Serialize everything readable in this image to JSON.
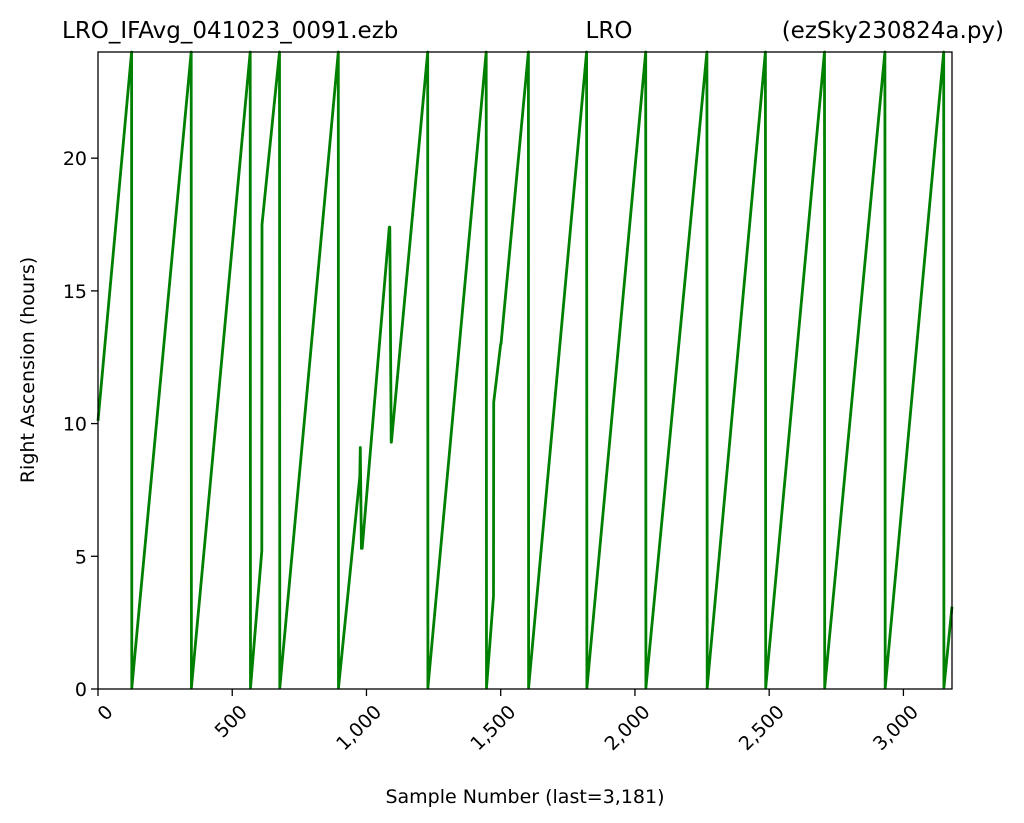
{
  "chart_data": {
    "type": "line",
    "title_left": "LRO_IFAvg_041023_0091.ezb",
    "title_center": "LRO",
    "title_right": "(ezSky230824a.py)",
    "xlabel": "Sample Number (last=3,181)",
    "ylabel": "Right Ascension (hours)",
    "xlim": [
      0,
      3181
    ],
    "ylim": [
      0,
      24
    ],
    "xticks": [
      {
        "value": 0,
        "label": "0"
      },
      {
        "value": 500,
        "label": "500"
      },
      {
        "value": 1000,
        "label": "1,000"
      },
      {
        "value": 1500,
        "label": "1,500"
      },
      {
        "value": 2000,
        "label": "2,000"
      },
      {
        "value": 2500,
        "label": "2,500"
      },
      {
        "value": 3000,
        "label": "3,000"
      }
    ],
    "yticks": [
      {
        "value": 0,
        "label": "0"
      },
      {
        "value": 5,
        "label": "5"
      },
      {
        "value": 10,
        "label": "10"
      },
      {
        "value": 15,
        "label": "15"
      },
      {
        "value": 20,
        "label": "20"
      }
    ],
    "grid": false,
    "legend": "none",
    "series": [
      {
        "color": "#008000",
        "x": [
          0,
          125,
          126,
          347,
          348,
          567,
          568,
          610,
          611,
          676,
          677,
          895,
          896,
          975,
          977,
          981,
          984,
          1085,
          1087,
          1092,
          1093,
          1228,
          1229,
          1446,
          1447,
          1473,
          1474,
          1500,
          1501,
          1603,
          1604,
          1820,
          1821,
          2040,
          2041,
          2268,
          2269,
          2486,
          2487,
          2706,
          2707,
          2931,
          2932,
          3150,
          3151,
          3181
        ],
        "y": [
          10.1,
          24,
          0.05,
          24,
          0.05,
          24,
          0.05,
          5.2,
          17.5,
          24,
          0.05,
          24,
          0.05,
          8.0,
          9.1,
          5.3,
          5.3,
          17.4,
          17.4,
          9.3,
          9.3,
          24,
          0.05,
          24,
          0.05,
          3.5,
          10.8,
          13.0,
          13.0,
          24,
          0.05,
          24,
          0.05,
          24,
          0.05,
          24,
          0.05,
          24,
          0.05,
          24,
          0.05,
          24,
          0.05,
          24,
          0.05,
          3.1
        ]
      }
    ]
  }
}
